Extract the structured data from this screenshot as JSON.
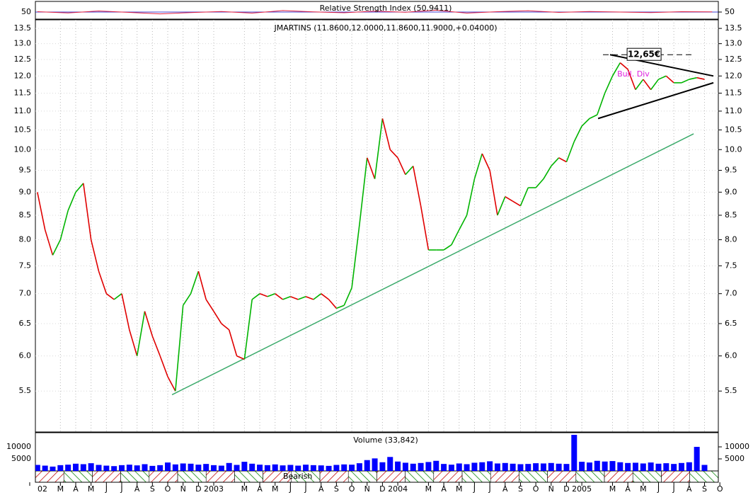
{
  "chart_data": [
    {
      "type": "line",
      "title": "JMARTINS (11.8600,12.0000,11.8600,11.9000,+0.04000)",
      "log": true,
      "x": [
        0.5,
        1,
        1.5,
        2,
        2.5,
        3,
        3.5,
        4,
        4.5,
        5,
        5.5,
        6,
        6.5,
        7,
        7.5,
        8,
        8.5,
        9,
        9.5,
        10,
        10.5,
        11,
        11.5,
        12,
        12.5,
        13,
        13.5,
        14,
        14.5,
        15,
        15.5,
        16,
        16.5,
        17,
        17.5,
        18,
        18.5,
        19,
        19.5,
        20,
        20.5,
        21,
        21.5,
        22,
        22.5,
        23,
        23.5,
        24,
        24.5,
        25,
        25.5,
        26,
        26.5,
        27,
        27.5,
        28,
        28.5,
        29,
        29.5,
        30,
        30.5,
        31,
        31.5,
        32,
        32.5,
        33,
        33.5,
        34,
        34.5,
        35,
        35.5,
        36,
        36.5,
        37,
        37.5,
        38,
        38.5,
        39,
        39.5,
        40,
        40.5,
        41,
        41.5,
        42,
        42.5,
        43,
        43.5,
        44
      ],
      "values": [
        9.0,
        8.2,
        7.7,
        8.0,
        8.6,
        9.0,
        9.2,
        8.0,
        7.4,
        7.0,
        6.9,
        7.0,
        6.4,
        6.0,
        6.7,
        6.3,
        6.0,
        5.7,
        5.5,
        6.8,
        7.0,
        7.4,
        6.9,
        6.7,
        6.5,
        6.4,
        6.0,
        5.95,
        6.9,
        7.0,
        6.95,
        7.0,
        6.9,
        6.95,
        6.9,
        6.95,
        6.9,
        7.0,
        6.9,
        6.75,
        6.8,
        7.1,
        8.3,
        9.8,
        9.3,
        10.8,
        10.0,
        9.8,
        9.4,
        9.6,
        8.7,
        7.8,
        7.8,
        7.8,
        7.9,
        8.2,
        8.5,
        9.3,
        9.9,
        9.5,
        8.5,
        8.9,
        8.8,
        8.7,
        9.1,
        9.1,
        9.3,
        9.6,
        9.8,
        9.7,
        10.2,
        10.6,
        10.8,
        10.9,
        11.5,
        12.0,
        12.4,
        12.2,
        11.6,
        11.9,
        11.6,
        11.9,
        12.0,
        11.8,
        11.8,
        11.9,
        11.95,
        11.9
      ],
      "up_color": "#00b400",
      "down_color": "#e00000",
      "xlim": [
        0.37,
        44.9
      ],
      "ylim": [
        4.97,
        13.79
      ],
      "yticks": [
        5.5,
        {
          "value": 6,
          "label": "6.0"
        },
        6.5,
        {
          "value": 7,
          "label": "7.0"
        },
        7.5,
        {
          "value": 8,
          "label": "8.0"
        },
        8.5,
        {
          "value": 9,
          "label": "9.0"
        },
        9.5,
        {
          "value": 10,
          "label": "10.0"
        },
        10.5,
        {
          "value": 11,
          "label": "11.0"
        },
        11.5,
        {
          "value": 12,
          "label": "12.0"
        },
        12.5,
        {
          "value": 13,
          "label": "13.0"
        },
        13.5
      ],
      "xticks": [
        {
          "value": 0,
          "label": "02"
        },
        {
          "value": 2,
          "label": "M"
        },
        {
          "value": 3,
          "label": "A"
        },
        {
          "value": 4,
          "label": "M"
        },
        {
          "value": 5,
          "label": "J"
        },
        {
          "value": 6,
          "label": "J"
        },
        {
          "value": 7,
          "label": "A"
        },
        {
          "value": 8,
          "label": "S"
        },
        {
          "value": 9,
          "label": "O"
        },
        {
          "value": 10,
          "label": "N"
        },
        {
          "value": 11,
          "label": "D"
        },
        {
          "value": 12,
          "label": "2003"
        },
        {
          "value": 14,
          "label": "M"
        },
        {
          "value": 15,
          "label": "A"
        },
        {
          "value": 16,
          "label": "M"
        },
        {
          "value": 17,
          "label": "J"
        },
        {
          "value": 18,
          "label": "J"
        },
        {
          "value": 19,
          "label": "A"
        },
        {
          "value": 20,
          "label": "S"
        },
        {
          "value": 21,
          "label": "O"
        },
        {
          "value": 22,
          "label": "N"
        },
        {
          "value": 23,
          "label": "D"
        },
        {
          "value": 24,
          "label": "2004"
        },
        {
          "value": 26,
          "label": "M"
        },
        {
          "value": 27,
          "label": "A"
        },
        {
          "value": 28,
          "label": "M"
        },
        {
          "value": 29,
          "label": "J"
        },
        {
          "value": 30,
          "label": "J"
        },
        {
          "value": 31,
          "label": "A"
        },
        {
          "value": 32,
          "label": "S"
        },
        {
          "value": 33,
          "label": "O"
        },
        {
          "value": 34,
          "label": "N"
        },
        {
          "value": 35,
          "label": "D"
        },
        {
          "value": 36,
          "label": "2005"
        },
        {
          "value": 38,
          "label": "M"
        },
        {
          "value": 39,
          "label": "A"
        },
        {
          "value": 40,
          "label": "M"
        },
        {
          "value": 41,
          "label": "J"
        },
        {
          "value": 42,
          "label": "J"
        },
        {
          "value": 43,
          "label": "A"
        },
        {
          "value": 44,
          "label": "S"
        },
        {
          "value": 45,
          "label": "O"
        }
      ],
      "grid": true,
      "trendlines": [
        {
          "x": [
            9.28,
            43.29
          ],
          "y": [
            5.45,
            10.4
          ],
          "color": "#3aaa6a"
        },
        {
          "x": [
            37.84,
            44.58
          ],
          "y": [
            12.65,
            12.0
          ],
          "color": "#000000"
        },
        {
          "x": [
            37.06,
            44.58
          ],
          "y": [
            10.8,
            11.8
          ],
          "color": "#000000"
        }
      ],
      "annotations": [
        {
          "text": "12,65€",
          "x": 40.06,
          "y": 12.65,
          "color": "#000000"
        },
        {
          "text": "Bull. Div",
          "x": 39.36,
          "y": 12.05,
          "color": "#e020e0"
        }
      ]
    },
    {
      "type": "bar",
      "title": "Volume (33,842)",
      "color": "#0000ff",
      "x": [
        0.5,
        1,
        1.5,
        2,
        2.5,
        3,
        3.5,
        4,
        4.5,
        5,
        5.5,
        6,
        6.5,
        7,
        7.5,
        8,
        8.5,
        9,
        9.5,
        10,
        10.5,
        11,
        11.5,
        12,
        12.5,
        13,
        13.5,
        14,
        14.5,
        15,
        15.5,
        16,
        16.5,
        17,
        17.5,
        18,
        18.5,
        19,
        19.5,
        20,
        20.5,
        21,
        21.5,
        22,
        22.5,
        23,
        23.5,
        24,
        24.5,
        25,
        25.5,
        26,
        26.5,
        27,
        27.5,
        28,
        28.5,
        29,
        29.5,
        30,
        30.5,
        31,
        31.5,
        32,
        32.5,
        33,
        33.5,
        34,
        34.5,
        35,
        35.5,
        36,
        36.5,
        37,
        37.5,
        38,
        38.5,
        39,
        39.5,
        40,
        40.5,
        41,
        41.5,
        42,
        42.5,
        43,
        43.5,
        44
      ],
      "values": [
        2500,
        2200,
        1800,
        2400,
        2600,
        3000,
        2800,
        3200,
        2500,
        2200,
        2000,
        2400,
        2600,
        2300,
        2800,
        2100,
        2400,
        3500,
        2700,
        3100,
        3000,
        2600,
        2900,
        2400,
        2200,
        3300,
        2500,
        3800,
        3000,
        2600,
        2400,
        2700,
        2300,
        2500,
        2200,
        2600,
        2400,
        2300,
        2100,
        2500,
        2700,
        2600,
        3200,
        4500,
        5200,
        3600,
        5800,
        3900,
        3400,
        3000,
        3300,
        3700,
        4200,
        2900,
        2600,
        3100,
        2800,
        3400,
        3600,
        4000,
        3100,
        3300,
        3000,
        2800,
        2900,
        3200,
        3100,
        3300,
        3000,
        2900,
        15000,
        3800,
        3500,
        4200,
        3900,
        4100,
        3600,
        3300,
        3400,
        3100,
        3500,
        3000,
        3200,
        2900,
        3300,
        3600,
        10000,
        2500
      ],
      "xlim": [
        0.37,
        44.9
      ],
      "ylim": [
        0,
        15600
      ],
      "yticks": [
        5000,
        10000
      ]
    },
    {
      "type": "line",
      "title": "Relative Strength Index (50.9411)",
      "color": "#e02040",
      "x": [
        0.5,
        2.5,
        4.5,
        6.5,
        8.5,
        10.5,
        12.5,
        14.5,
        16.5,
        18.5,
        20.5,
        22.5,
        24.5,
        26.5,
        28.5,
        30.5,
        32.5,
        34.5,
        36.5,
        38.5,
        40.5,
        42.5,
        44.5
      ],
      "values": [
        52,
        45,
        56,
        48,
        40,
        47,
        53,
        44,
        58,
        51,
        46,
        55,
        49,
        60,
        44,
        52,
        57,
        48,
        53,
        50,
        47,
        52,
        51
      ],
      "xlim": [
        0.37,
        44.9
      ],
      "ylim": [
        0,
        100
      ],
      "yticks": [
        50
      ]
    }
  ],
  "signal_strip": {
    "label": "Bearish"
  }
}
